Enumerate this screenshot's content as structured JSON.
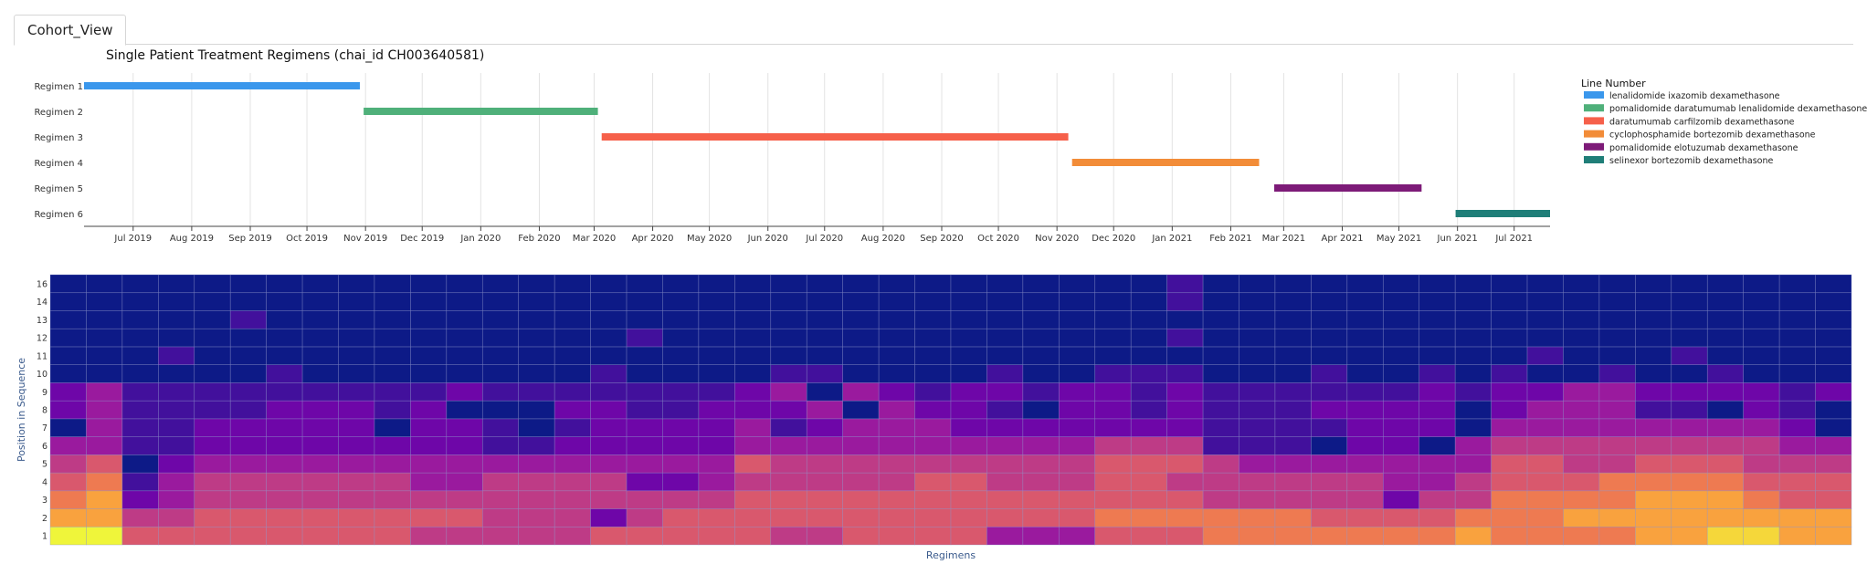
{
  "tab": {
    "label": "Cohort_View"
  },
  "chart_data": [
    {
      "type": "gantt",
      "title": "Single Patient Treatment Regimens (chai_id CH003640581)",
      "legend_title": "Line Number",
      "legend_position": "right",
      "y_categories": [
        "Regimen 1",
        "Regimen 2",
        "Regimen 3",
        "Regimen 4",
        "Regimen 5",
        "Regimen 6"
      ],
      "x_ticks": [
        "Jul 2019",
        "Aug 2019",
        "Sep 2019",
        "Oct 2019",
        "Nov 2019",
        "Dec 2019",
        "Jan 2020",
        "Feb 2020",
        "Mar 2020",
        "Apr 2020",
        "May 2020",
        "Jun 2020",
        "Jul 2020",
        "Aug 2020",
        "Sep 2020",
        "Oct 2020",
        "Nov 2020",
        "Dec 2020",
        "Jan 2021",
        "Feb 2021",
        "Mar 2021",
        "Apr 2021",
        "May 2021",
        "Jun 2021",
        "Jul 2021"
      ],
      "x_range": [
        "2019-06-05",
        "2021-07-20"
      ],
      "grid": true,
      "series": [
        {
          "name": "lenalidomide ixazomib dexamethasone",
          "regimen": "Regimen 1",
          "start": "2019-06-05",
          "end": "2019-10-29",
          "color": "#3a97ec"
        },
        {
          "name": "pomalidomide daratumumab lenalidomide dexamethasone",
          "regimen": "Regimen 2",
          "start": "2019-10-31",
          "end": "2020-03-03",
          "color": "#4fb07a"
        },
        {
          "name": "daratumumab carfilzomib dexamethasone",
          "regimen": "Regimen 3",
          "start": "2020-03-05",
          "end": "2020-11-07",
          "color": "#f6604a"
        },
        {
          "name": "cyclophosphamide bortezomib dexamethasone",
          "regimen": "Regimen 4",
          "start": "2020-11-09",
          "end": "2021-02-16",
          "color": "#f28c38"
        },
        {
          "name": "pomalidomide elotuzumab dexamethasone",
          "regimen": "Regimen 5",
          "start": "2021-02-24",
          "end": "2021-05-13",
          "color": "#7d1b78"
        },
        {
          "name": "selinexor bortezomib dexamethasone",
          "regimen": "Regimen 6",
          "start": "2021-05-31",
          "end": "2021-07-20",
          "color": "#1f7e78"
        }
      ]
    },
    {
      "type": "heatmap",
      "title": "",
      "xlabel": "Regimens",
      "ylabel": "Position in Sequence",
      "y_tick_labels": [
        "1",
        "2",
        "3",
        "4",
        "5",
        "6",
        "7",
        "8",
        "9",
        "10",
        "11",
        "12",
        "13",
        "14",
        "16"
      ],
      "n_columns": 50,
      "colorscale": [
        "#0d1a87",
        "#42109c",
        "#6e06a8",
        "#9a1a9e",
        "#be3b86",
        "#d9586d",
        "#ee7a51",
        "#f9a23e",
        "#f5d73a",
        "#eff53a"
      ],
      "values": [
        [
          9,
          9,
          5,
          5,
          5,
          5,
          5,
          5,
          5,
          5,
          4,
          4,
          4,
          4,
          4,
          5,
          5,
          5,
          5,
          5,
          4,
          4,
          5,
          5,
          5,
          5,
          3,
          3,
          3,
          5,
          5,
          5,
          6,
          6,
          6,
          6,
          6,
          6,
          6,
          7,
          6,
          6,
          6,
          6,
          7,
          7,
          8,
          8,
          7,
          7
        ],
        [
          7,
          7,
          4,
          4,
          5,
          5,
          5,
          5,
          5,
          5,
          5,
          5,
          4,
          4,
          4,
          2,
          4,
          5,
          5,
          5,
          5,
          5,
          5,
          5,
          5,
          5,
          5,
          5,
          5,
          6,
          6,
          6,
          6,
          6,
          6,
          5,
          5,
          5,
          5,
          6,
          6,
          6,
          7,
          7,
          7,
          7,
          7,
          7,
          7,
          7
        ],
        [
          6,
          7,
          2,
          3,
          4,
          4,
          4,
          4,
          4,
          4,
          4,
          4,
          4,
          4,
          4,
          4,
          4,
          4,
          4,
          5,
          5,
          5,
          5,
          5,
          5,
          5,
          5,
          5,
          5,
          5,
          5,
          5,
          4,
          4,
          4,
          4,
          4,
          2,
          4,
          4,
          6,
          6,
          6,
          6,
          7,
          7,
          7,
          6,
          5,
          5
        ],
        [
          5,
          6,
          1,
          3,
          4,
          4,
          4,
          4,
          4,
          4,
          3,
          3,
          4,
          4,
          4,
          4,
          2,
          2,
          3,
          4,
          4,
          4,
          4,
          4,
          5,
          5,
          4,
          4,
          4,
          5,
          5,
          4,
          4,
          4,
          4,
          4,
          4,
          3,
          3,
          4,
          5,
          5,
          5,
          6,
          6,
          6,
          6,
          5,
          5,
          5
        ],
        [
          4,
          5,
          0,
          2,
          3,
          3,
          3,
          3,
          3,
          3,
          3,
          3,
          3,
          3,
          3,
          3,
          3,
          3,
          3,
          5,
          4,
          4,
          4,
          4,
          4,
          4,
          4,
          4,
          4,
          5,
          5,
          5,
          4,
          3,
          3,
          3,
          3,
          3,
          3,
          3,
          5,
          5,
          4,
          4,
          5,
          5,
          5,
          4,
          4,
          4
        ],
        [
          3,
          3,
          1,
          1,
          2,
          2,
          2,
          2,
          2,
          2,
          2,
          2,
          1,
          1,
          2,
          2,
          2,
          2,
          2,
          3,
          3,
          3,
          3,
          3,
          3,
          3,
          3,
          3,
          3,
          4,
          4,
          4,
          1,
          1,
          1,
          0,
          2,
          2,
          0,
          3,
          4,
          4,
          4,
          4,
          4,
          4,
          4,
          4,
          3,
          3
        ],
        [
          0,
          3,
          1,
          1,
          2,
          2,
          2,
          2,
          2,
          0,
          2,
          2,
          1,
          0,
          1,
          2,
          2,
          2,
          2,
          3,
          1,
          2,
          3,
          3,
          3,
          2,
          2,
          2,
          2,
          2,
          2,
          2,
          1,
          1,
          1,
          1,
          2,
          2,
          2,
          0,
          3,
          3,
          3,
          3,
          3,
          3,
          3,
          3,
          2,
          0
        ],
        [
          2,
          3,
          1,
          1,
          1,
          1,
          2,
          2,
          2,
          1,
          2,
          0,
          0,
          0,
          2,
          2,
          1,
          1,
          2,
          2,
          2,
          3,
          0,
          3,
          2,
          2,
          1,
          0,
          2,
          2,
          1,
          2,
          1,
          1,
          1,
          2,
          2,
          2,
          2,
          0,
          2,
          3,
          3,
          3,
          1,
          1,
          0,
          2,
          1,
          0
        ],
        [
          2,
          3,
          1,
          1,
          1,
          1,
          1,
          1,
          1,
          1,
          1,
          2,
          1,
          1,
          1,
          1,
          1,
          1,
          1,
          2,
          3,
          0,
          3,
          2,
          1,
          2,
          2,
          1,
          2,
          2,
          1,
          2,
          1,
          1,
          1,
          1,
          1,
          1,
          2,
          1,
          2,
          2,
          3,
          3,
          2,
          2,
          2,
          2,
          1,
          2
        ],
        [
          0,
          0,
          0,
          0,
          0,
          0,
          1,
          0,
          0,
          0,
          0,
          0,
          0,
          0,
          0,
          1,
          0,
          0,
          0,
          0,
          1,
          1,
          0,
          0,
          0,
          0,
          1,
          0,
          0,
          1,
          1,
          1,
          0,
          0,
          0,
          1,
          0,
          0,
          1,
          0,
          1,
          0,
          0,
          1,
          0,
          0,
          1,
          0,
          0,
          0
        ],
        [
          0,
          0,
          0,
          1,
          0,
          0,
          0,
          0,
          0,
          0,
          0,
          0,
          0,
          0,
          0,
          0,
          0,
          0,
          0,
          0,
          0,
          0,
          0,
          0,
          0,
          0,
          0,
          0,
          0,
          0,
          0,
          0,
          0,
          0,
          0,
          0,
          0,
          0,
          0,
          0,
          0,
          1,
          0,
          0,
          0,
          1,
          0,
          0,
          0,
          0
        ],
        [
          0,
          0,
          0,
          0,
          0,
          0,
          0,
          0,
          0,
          0,
          0,
          0,
          0,
          0,
          0,
          0,
          1,
          0,
          0,
          0,
          0,
          0,
          0,
          0,
          0,
          0,
          0,
          0,
          0,
          0,
          0,
          1,
          0,
          0,
          0,
          0,
          0,
          0,
          0,
          0,
          0,
          0,
          0,
          0,
          0,
          0,
          0,
          0,
          0,
          0
        ],
        [
          0,
          0,
          0,
          0,
          0,
          1,
          0,
          0,
          0,
          0,
          0,
          0,
          0,
          0,
          0,
          0,
          0,
          0,
          0,
          0,
          0,
          0,
          0,
          0,
          0,
          0,
          0,
          0,
          0,
          0,
          0,
          0,
          0,
          0,
          0,
          0,
          0,
          0,
          0,
          0,
          0,
          0,
          0,
          0,
          0,
          0,
          0,
          0,
          0,
          0
        ],
        [
          0,
          0,
          0,
          0,
          0,
          0,
          0,
          0,
          0,
          0,
          0,
          0,
          0,
          0,
          0,
          0,
          0,
          0,
          0,
          0,
          0,
          0,
          0,
          0,
          0,
          0,
          0,
          0,
          0,
          0,
          0,
          1,
          0,
          0,
          0,
          0,
          0,
          0,
          0,
          0,
          0,
          0,
          0,
          0,
          0,
          0,
          0,
          0,
          0,
          0
        ],
        [
          0,
          0,
          0,
          0,
          0,
          0,
          0,
          0,
          0,
          0,
          0,
          0,
          0,
          0,
          0,
          0,
          0,
          0,
          0,
          0,
          0,
          0,
          0,
          0,
          0,
          0,
          0,
          0,
          0,
          0,
          0,
          1,
          0,
          0,
          0,
          0,
          0,
          0,
          0,
          0,
          0,
          0,
          0,
          0,
          0,
          0,
          0,
          0,
          0,
          0
        ]
      ]
    }
  ]
}
